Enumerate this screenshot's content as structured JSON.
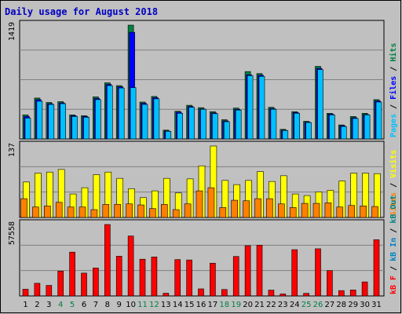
{
  "chart_data": {
    "type": "bar",
    "title": "Daily usage for August 2018",
    "categories": [
      "1",
      "2",
      "3",
      "4",
      "5",
      "6",
      "7",
      "8",
      "9",
      "10",
      "11",
      "12",
      "13",
      "14",
      "15",
      "16",
      "17",
      "18",
      "19",
      "20",
      "21",
      "22",
      "23",
      "24",
      "25",
      "26",
      "27",
      "28",
      "29",
      "30",
      "31"
    ],
    "weekend_days": [
      "4",
      "5",
      "11",
      "12",
      "18",
      "19",
      "25",
      "26"
    ],
    "colors": {
      "title": "#0000C0",
      "frame_bg": "#C0C0C0",
      "plot_bg": "#C0C0C0",
      "grid": "#808080",
      "hits": "#008040",
      "files": "#0000FF",
      "pages": "#00C0FF",
      "sites": "#FF8000",
      "visits": "#FFFF00",
      "kbin": "#0080C0",
      "kbout": "#008080",
      "kbf": "#FF0000",
      "weekend_label": "#008040",
      "day_label": "#000000"
    },
    "panels": [
      {
        "max_label": "1419",
        "ylim": [
          0,
          1419
        ],
        "series": [
          {
            "name": "Hits",
            "values": [
              300,
              510,
              455,
              465,
              300,
              290,
              525,
              700,
              665,
              1419,
              460,
              530,
              110,
              345,
              420,
              390,
              340,
              240,
              385,
              840,
              815,
              395,
              120,
              340,
              220,
              905,
              320,
              175,
              280,
              320,
              490
            ]
          },
          {
            "name": "Files",
            "values": [
              280,
              490,
              440,
              450,
              290,
              280,
              505,
              680,
              650,
              1330,
              445,
              515,
              100,
              335,
              405,
              375,
              325,
              225,
              370,
              800,
              795,
              380,
              110,
              330,
              210,
              880,
              310,
              165,
              265,
              305,
              475
            ]
          },
          {
            "name": "Pages",
            "values": [
              260,
              470,
              430,
              440,
              280,
              270,
              490,
              665,
              635,
              640,
              430,
              500,
              95,
              320,
              395,
              370,
              315,
              215,
              360,
              790,
              780,
              370,
              105,
              320,
              205,
              865,
              300,
              155,
              255,
              300,
              460
            ]
          }
        ],
        "legend": [
          {
            "label": "Pages",
            "color": "#00C0FF"
          },
          {
            "label": "Files",
            "color": "#0000FF"
          },
          {
            "label": "Hits",
            "color": "#008040"
          }
        ]
      },
      {
        "max_label": "137",
        "ylim": [
          0,
          137
        ],
        "series": [
          {
            "name": "Visits",
            "values": [
              68,
              85,
              87,
              92,
              45,
              57,
              82,
              87,
              75,
              55,
              38,
              51,
              75,
              47,
              74,
              99,
              137,
              71,
              63,
              71,
              88,
              69,
              80,
              45,
              42,
              49,
              52,
              70,
              85,
              85,
              84
            ]
          },
          {
            "name": "Sites",
            "values": [
              36,
              20,
              22,
              29,
              20,
              20,
              15,
              25,
              25,
              26,
              24,
              17,
              25,
              15,
              26,
              51,
              57,
              19,
              33,
              32,
              36,
              36,
              26,
              19,
              27,
              27,
              28,
              20,
              23,
              22,
              21
            ]
          }
        ],
        "legend": [
          {
            "label": "Sites",
            "color": "#FF8000"
          },
          {
            "label": "Visits",
            "color": "#FFFF00"
          }
        ]
      },
      {
        "max_label": "57558",
        "ylim": [
          0,
          57558
        ],
        "series": [
          {
            "name": "KB F",
            "values": [
              5400,
              10200,
              8500,
              20000,
              35300,
              18400,
              22500,
              57558,
              32000,
              48300,
              29600,
              31400,
              2200,
              29300,
              29000,
              5700,
              26400,
              5200,
              31800,
              40500,
              40900,
              4700,
              1600,
              37300,
              2100,
              38000,
              20400,
              4300,
              4800,
              11300,
              45300
            ]
          }
        ],
        "legend": [
          {
            "label": "kB F",
            "color": "#FF0000"
          },
          {
            "label": "kB In",
            "color": "#0080C0"
          },
          {
            "label": "kB Out",
            "color": "#008080"
          }
        ]
      }
    ]
  }
}
